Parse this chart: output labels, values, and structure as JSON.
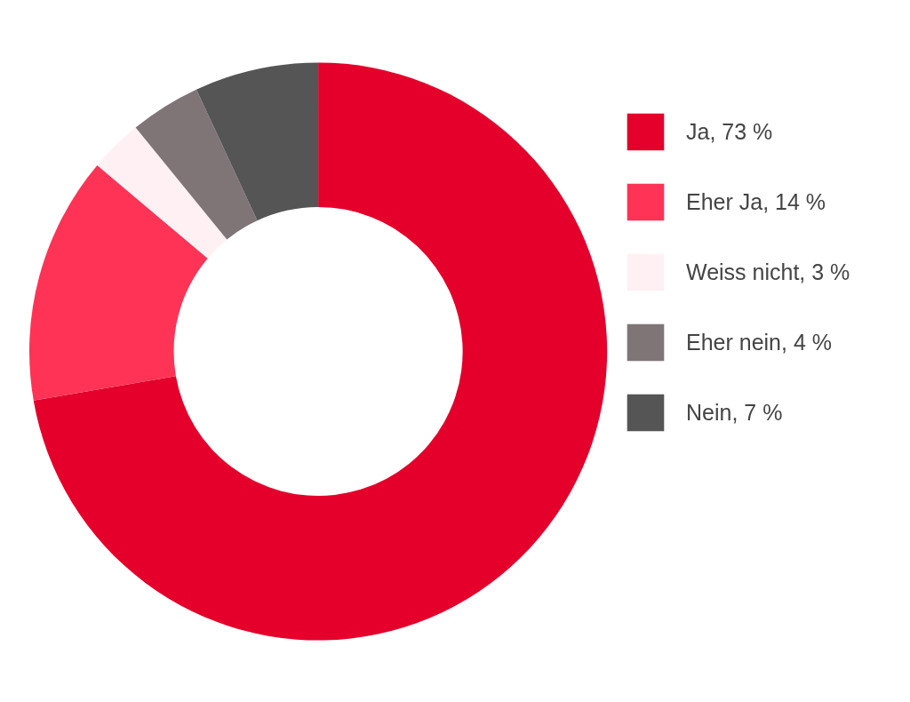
{
  "chart_data": {
    "type": "donut",
    "categories": [
      "Ja, 73 %",
      "Eher Ja, 14 %",
      "Weiss nicht, 3 %",
      "Eher nein, 4 %",
      "Nein, 7 %"
    ],
    "values": [
      73,
      14,
      3,
      4,
      7
    ],
    "colors": [
      "#e4002b",
      "#ff3355",
      "#fff0f3",
      "#7f7577",
      "#555555"
    ],
    "legend": "right"
  }
}
